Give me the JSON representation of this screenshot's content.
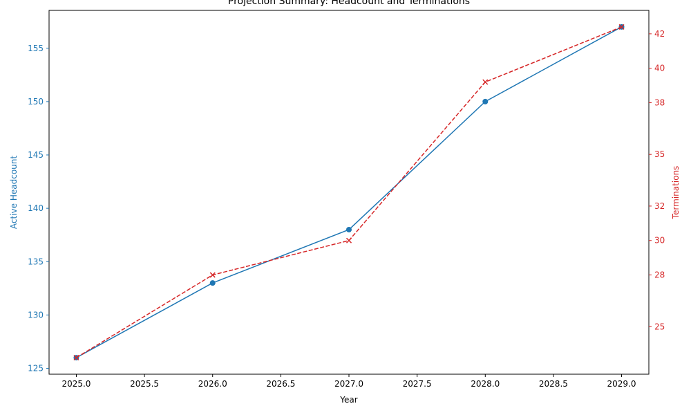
{
  "chart_data": {
    "type": "line",
    "title": "Projection Summary: Headcount and Terminations",
    "xlabel": "Year",
    "x": [
      2025,
      2026,
      2027,
      2028,
      2029
    ],
    "x_ticks": [
      "2025.0",
      "2025.5",
      "2026.0",
      "2026.5",
      "2027.0",
      "2027.5",
      "2028.0",
      "2028.5",
      "2029.0"
    ],
    "x_tick_values": [
      2025.0,
      2025.5,
      2026.0,
      2026.5,
      2027.0,
      2027.5,
      2028.0,
      2028.5,
      2029.0
    ],
    "xlim": [
      2024.8,
      2029.2
    ],
    "grid": false,
    "legend": "none",
    "series": [
      {
        "axis": "left",
        "ylabel": "Active Headcount",
        "values": [
          126,
          133,
          138,
          150,
          157
        ],
        "color": "#1f77b4",
        "line_style": "solid",
        "marker": "circle",
        "ylim": [
          124.45,
          158.55
        ],
        "y_ticks": [
          "125",
          "130",
          "135",
          "140",
          "145",
          "150",
          "155"
        ],
        "y_tick_values": [
          125,
          130,
          135,
          140,
          145,
          150,
          155
        ]
      },
      {
        "axis": "right",
        "ylabel": "Terminations",
        "values": [
          23.2,
          28.0,
          30.0,
          39.2,
          42.4
        ],
        "color": "#d62728",
        "line_style": "dashed",
        "marker": "x",
        "ylim": [
          22.24,
          43.36
        ],
        "y_ticks": [
          "25",
          "28",
          "30",
          "32",
          "35",
          "38",
          "40",
          "42"
        ],
        "y_tick_values": [
          25,
          28,
          30,
          32,
          35,
          38,
          40,
          42
        ]
      }
    ]
  }
}
